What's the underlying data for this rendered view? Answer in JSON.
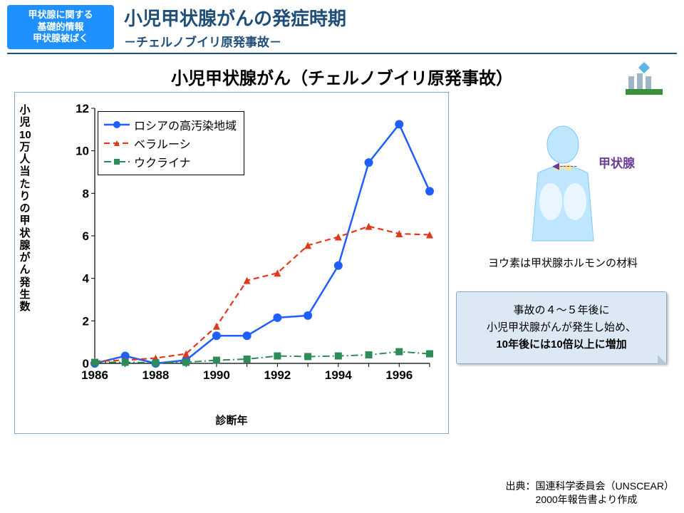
{
  "header": {
    "tag_line1": "甲状腺に関する",
    "tag_line2": "基礎的情報",
    "tag_line3": "甲状腺被ばく",
    "title": "小児甲状腺がんの発症時期",
    "subtitle": "－チェルノブイリ原発事故－"
  },
  "chart_title": "小児甲状腺がん（チェルノブイリ原発事故）",
  "chart": {
    "type": "line",
    "y_label_vertical": "小児10万人当たりの甲状腺がん発生数",
    "x_label": "診断年",
    "xlim": [
      1986,
      1997
    ],
    "ylim": [
      0,
      12
    ],
    "ytick_step": 2,
    "x_ticks": [
      1986,
      1988,
      1990,
      1992,
      1994,
      1996
    ],
    "x_years": [
      1986,
      1987,
      1988,
      1989,
      1990,
      1991,
      1992,
      1993,
      1994,
      1995,
      1996,
      1997
    ],
    "grid_color": "#bfbfbf",
    "axis_color": "#000000",
    "background_color": "#ffffff",
    "tick_fontsize": 17,
    "series": [
      {
        "name": "ロシアの高汚染地域",
        "color": "#1f5fff",
        "line_style": "solid",
        "line_width": 2.5,
        "marker": "circle",
        "marker_size": 6,
        "values": [
          0.0,
          0.35,
          0.0,
          0.15,
          1.3,
          1.3,
          2.15,
          2.25,
          4.6,
          9.45,
          11.25,
          8.1
        ]
      },
      {
        "name": "ベラルーシ",
        "color": "#e03a1a",
        "line_style": "dashed",
        "line_width": 2.2,
        "marker": "triangle",
        "marker_size": 5,
        "values": [
          0.1,
          0.15,
          0.25,
          0.45,
          1.75,
          3.9,
          4.25,
          5.55,
          5.95,
          6.45,
          6.1,
          6.05
        ]
      },
      {
        "name": "ウクライナ",
        "color": "#2e8b57",
        "line_style": "dash-dot",
        "line_width": 2.0,
        "marker": "square",
        "marker_size": 5,
        "values": [
          0.05,
          0.05,
          0.03,
          0.05,
          0.15,
          0.2,
          0.35,
          0.32,
          0.35,
          0.4,
          0.55,
          0.45
        ]
      }
    ]
  },
  "side": {
    "anatomy_label": "甲状腺",
    "iodine_text": "ヨウ素は甲状腺ホルモンの材料",
    "note_line1": "事故の４～５年後に",
    "note_line2": "小児甲状腺がんが発生し始め、",
    "note_line3": "10年後には10倍以上に増加"
  },
  "source": {
    "line1": "出典：国連科学委員会（UNSCEAR）",
    "line2": "　　　2000年報告書より作成"
  }
}
